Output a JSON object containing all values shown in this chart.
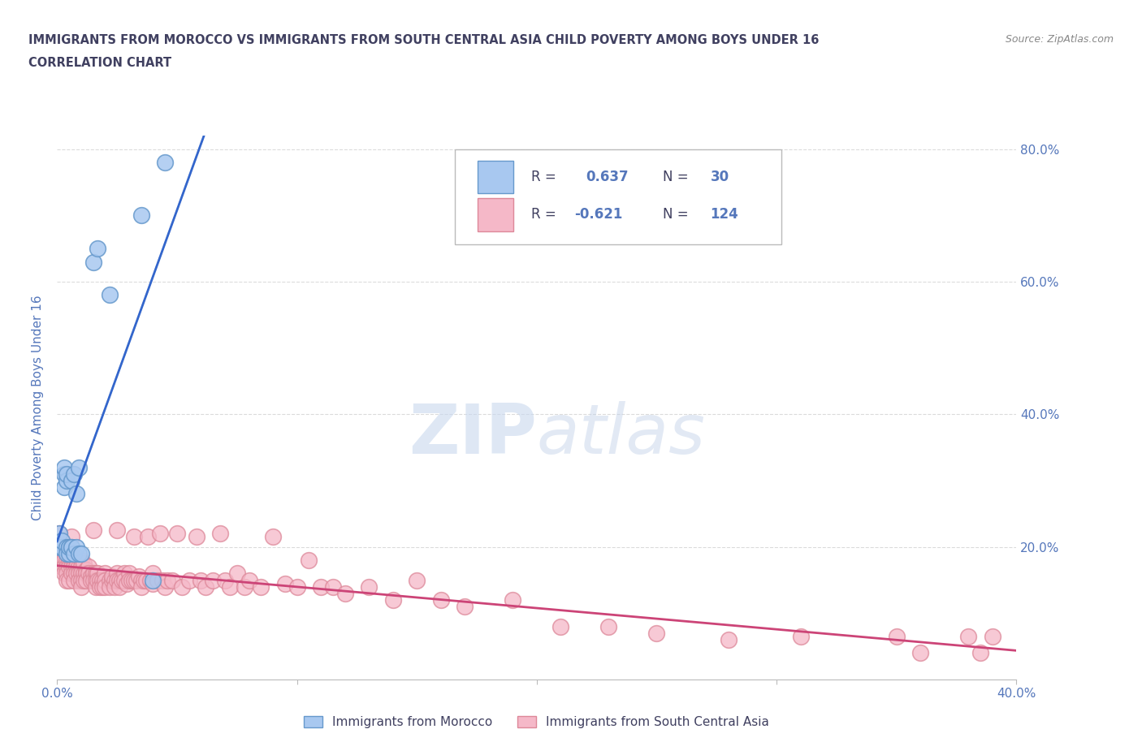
{
  "title_line1": "IMMIGRANTS FROM MOROCCO VS IMMIGRANTS FROM SOUTH CENTRAL ASIA CHILD POVERTY AMONG BOYS UNDER 16",
  "title_line2": "CORRELATION CHART",
  "source": "Source: ZipAtlas.com",
  "ylabel": "Child Poverty Among Boys Under 16",
  "xlim": [
    0.0,
    0.4
  ],
  "ylim": [
    0.0,
    0.82
  ],
  "x_ticks": [
    0.0,
    0.1,
    0.2,
    0.3,
    0.4
  ],
  "x_tick_labels": [
    "0.0%",
    "",
    "",
    "",
    "40.0%"
  ],
  "y_ticks": [
    0.0,
    0.2,
    0.4,
    0.6,
    0.8
  ],
  "y_tick_labels_right": [
    "",
    "20.0%",
    "40.0%",
    "60.0%",
    "80.0%"
  ],
  "morocco_color": "#a8c8f0",
  "morocco_edge_color": "#6699cc",
  "sca_color": "#f5b8c8",
  "sca_edge_color": "#dd8899",
  "legend_label_morocco": "Immigrants from Morocco",
  "legend_label_sca": "Immigrants from South Central Asia",
  "title_color": "#404060",
  "tick_color": "#5577bb",
  "background_color": "#ffffff",
  "grid_color": "#cccccc",
  "trend_blue": "#3366cc",
  "trend_pink": "#cc4477",
  "trend_gray": "#aaaaaa",
  "morocco_scatter": [
    [
      0.001,
      0.2
    ],
    [
      0.001,
      0.22
    ],
    [
      0.002,
      0.2
    ],
    [
      0.002,
      0.21
    ],
    [
      0.003,
      0.31
    ],
    [
      0.003,
      0.32
    ],
    [
      0.003,
      0.29
    ],
    [
      0.004,
      0.3
    ],
    [
      0.004,
      0.31
    ],
    [
      0.004,
      0.2
    ],
    [
      0.004,
      0.19
    ],
    [
      0.005,
      0.2
    ],
    [
      0.005,
      0.19
    ],
    [
      0.005,
      0.2
    ],
    [
      0.006,
      0.2
    ],
    [
      0.006,
      0.3
    ],
    [
      0.006,
      0.2
    ],
    [
      0.007,
      0.19
    ],
    [
      0.007,
      0.31
    ],
    [
      0.008,
      0.2
    ],
    [
      0.008,
      0.28
    ],
    [
      0.009,
      0.32
    ],
    [
      0.009,
      0.19
    ],
    [
      0.01,
      0.19
    ],
    [
      0.015,
      0.63
    ],
    [
      0.017,
      0.65
    ],
    [
      0.022,
      0.58
    ],
    [
      0.035,
      0.7
    ],
    [
      0.04,
      0.15
    ],
    [
      0.045,
      0.78
    ]
  ],
  "sca_scatter": [
    [
      0.001,
      0.195
    ],
    [
      0.001,
      0.205
    ],
    [
      0.001,
      0.22
    ],
    [
      0.002,
      0.19
    ],
    [
      0.002,
      0.2
    ],
    [
      0.002,
      0.18
    ],
    [
      0.002,
      0.17
    ],
    [
      0.003,
      0.185
    ],
    [
      0.003,
      0.2
    ],
    [
      0.003,
      0.18
    ],
    [
      0.003,
      0.17
    ],
    [
      0.003,
      0.16
    ],
    [
      0.004,
      0.19
    ],
    [
      0.004,
      0.18
    ],
    [
      0.004,
      0.17
    ],
    [
      0.004,
      0.16
    ],
    [
      0.004,
      0.15
    ],
    [
      0.005,
      0.19
    ],
    [
      0.005,
      0.18
    ],
    [
      0.005,
      0.17
    ],
    [
      0.005,
      0.15
    ],
    [
      0.006,
      0.18
    ],
    [
      0.006,
      0.17
    ],
    [
      0.006,
      0.16
    ],
    [
      0.006,
      0.215
    ],
    [
      0.007,
      0.18
    ],
    [
      0.007,
      0.17
    ],
    [
      0.007,
      0.16
    ],
    [
      0.007,
      0.15
    ],
    [
      0.008,
      0.18
    ],
    [
      0.008,
      0.17
    ],
    [
      0.008,
      0.16
    ],
    [
      0.009,
      0.17
    ],
    [
      0.009,
      0.16
    ],
    [
      0.009,
      0.15
    ],
    [
      0.01,
      0.18
    ],
    [
      0.01,
      0.17
    ],
    [
      0.01,
      0.16
    ],
    [
      0.01,
      0.15
    ],
    [
      0.01,
      0.14
    ],
    [
      0.011,
      0.175
    ],
    [
      0.011,
      0.16
    ],
    [
      0.011,
      0.15
    ],
    [
      0.012,
      0.165
    ],
    [
      0.012,
      0.16
    ],
    [
      0.012,
      0.15
    ],
    [
      0.013,
      0.17
    ],
    [
      0.013,
      0.16
    ],
    [
      0.014,
      0.155
    ],
    [
      0.014,
      0.15
    ],
    [
      0.015,
      0.16
    ],
    [
      0.015,
      0.15
    ],
    [
      0.015,
      0.225
    ],
    [
      0.016,
      0.16
    ],
    [
      0.016,
      0.15
    ],
    [
      0.016,
      0.14
    ],
    [
      0.017,
      0.16
    ],
    [
      0.017,
      0.15
    ],
    [
      0.018,
      0.15
    ],
    [
      0.018,
      0.14
    ],
    [
      0.019,
      0.15
    ],
    [
      0.019,
      0.14
    ],
    [
      0.02,
      0.16
    ],
    [
      0.02,
      0.15
    ],
    [
      0.02,
      0.14
    ],
    [
      0.022,
      0.15
    ],
    [
      0.022,
      0.14
    ],
    [
      0.023,
      0.15
    ],
    [
      0.023,
      0.155
    ],
    [
      0.024,
      0.15
    ],
    [
      0.024,
      0.14
    ],
    [
      0.025,
      0.16
    ],
    [
      0.025,
      0.15
    ],
    [
      0.025,
      0.225
    ],
    [
      0.026,
      0.15
    ],
    [
      0.026,
      0.14
    ],
    [
      0.027,
      0.15
    ],
    [
      0.028,
      0.16
    ],
    [
      0.028,
      0.15
    ],
    [
      0.029,
      0.145
    ],
    [
      0.03,
      0.16
    ],
    [
      0.03,
      0.15
    ],
    [
      0.031,
      0.15
    ],
    [
      0.032,
      0.15
    ],
    [
      0.032,
      0.215
    ],
    [
      0.033,
      0.15
    ],
    [
      0.034,
      0.155
    ],
    [
      0.035,
      0.15
    ],
    [
      0.035,
      0.14
    ],
    [
      0.036,
      0.15
    ],
    [
      0.037,
      0.15
    ],
    [
      0.038,
      0.215
    ],
    [
      0.039,
      0.15
    ],
    [
      0.04,
      0.16
    ],
    [
      0.04,
      0.145
    ],
    [
      0.042,
      0.15
    ],
    [
      0.043,
      0.22
    ],
    [
      0.044,
      0.15
    ],
    [
      0.045,
      0.14
    ],
    [
      0.046,
      0.15
    ],
    [
      0.048,
      0.15
    ],
    [
      0.05,
      0.22
    ],
    [
      0.052,
      0.14
    ],
    [
      0.055,
      0.15
    ],
    [
      0.058,
      0.215
    ],
    [
      0.06,
      0.15
    ],
    [
      0.062,
      0.14
    ],
    [
      0.065,
      0.15
    ],
    [
      0.068,
      0.22
    ],
    [
      0.07,
      0.15
    ],
    [
      0.072,
      0.14
    ],
    [
      0.075,
      0.16
    ],
    [
      0.078,
      0.14
    ],
    [
      0.08,
      0.15
    ],
    [
      0.085,
      0.14
    ],
    [
      0.09,
      0.215
    ],
    [
      0.095,
      0.145
    ],
    [
      0.1,
      0.14
    ],
    [
      0.105,
      0.18
    ],
    [
      0.11,
      0.14
    ],
    [
      0.115,
      0.14
    ],
    [
      0.12,
      0.13
    ],
    [
      0.13,
      0.14
    ],
    [
      0.14,
      0.12
    ],
    [
      0.15,
      0.15
    ],
    [
      0.16,
      0.12
    ],
    [
      0.17,
      0.11
    ],
    [
      0.19,
      0.12
    ],
    [
      0.21,
      0.08
    ],
    [
      0.23,
      0.08
    ],
    [
      0.25,
      0.07
    ],
    [
      0.28,
      0.06
    ],
    [
      0.31,
      0.065
    ],
    [
      0.35,
      0.065
    ],
    [
      0.36,
      0.04
    ],
    [
      0.38,
      0.065
    ],
    [
      0.385,
      0.04
    ],
    [
      0.39,
      0.065
    ]
  ]
}
